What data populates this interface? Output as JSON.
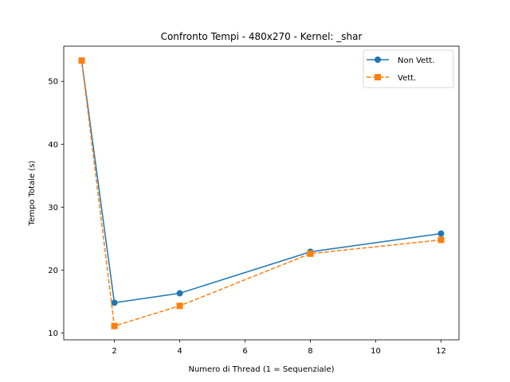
{
  "chart_data": {
    "type": "line",
    "title": "Confronto Tempi - 480x270 - Kernel: _shar",
    "xlabel": "Numero di Thread (1 = Sequenziale)",
    "ylabel": "Tempo Totale (s)",
    "x": [
      1,
      2,
      4,
      8,
      12
    ],
    "xlim": [
      0.45,
      12.55
    ],
    "ylim": [
      8.9,
      55.6
    ],
    "xticks": [
      2,
      4,
      6,
      8,
      10,
      12
    ],
    "yticks": [
      10,
      20,
      30,
      40,
      50
    ],
    "grid": false,
    "legend_position": "top-right",
    "series": [
      {
        "name": "Non Vett.",
        "values": [
          53.3,
          14.8,
          16.3,
          22.9,
          25.8
        ],
        "color": "#1f77b4",
        "marker": "circle",
        "line_style": "solid"
      },
      {
        "name": "Vett.",
        "values": [
          53.3,
          11.1,
          14.3,
          22.6,
          24.8
        ],
        "color": "#ff7f0e",
        "marker": "square",
        "line_style": "dashed"
      }
    ]
  }
}
